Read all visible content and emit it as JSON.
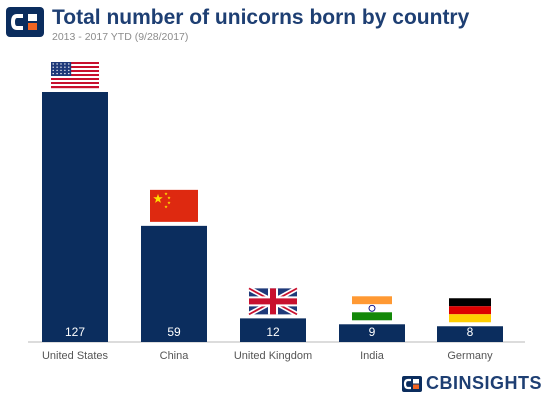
{
  "header": {
    "title": "Total number of unicorns born by country",
    "subtitle": "2013 - 2017 YTD (9/28/2017)"
  },
  "brand": {
    "name": "CBINSIGHTS",
    "navy": "#0b2d5e",
    "accent": "#f26522"
  },
  "chart_data": {
    "type": "bar",
    "title": "Total number of unicorns born by country",
    "subtitle": "2013 - 2017 YTD (9/28/2017)",
    "categories": [
      "United States",
      "China",
      "United Kingdom",
      "India",
      "Germany"
    ],
    "values": [
      127,
      59,
      12,
      9,
      8
    ],
    "value_labels": [
      "127",
      "59",
      "12",
      "9",
      "8"
    ],
    "flags": [
      "us-flag",
      "china-flag",
      "uk-flag",
      "india-flag",
      "germany-flag"
    ],
    "bar_color": "#0b2d5e",
    "value_label_color": "#ffffff",
    "grid": false,
    "legend": "none"
  }
}
